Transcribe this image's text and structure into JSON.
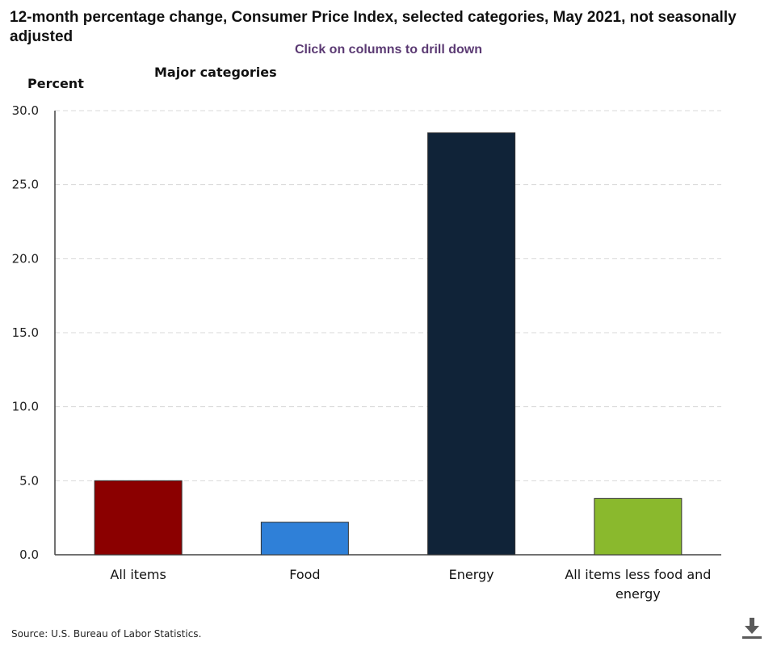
{
  "title": "12-month percentage change, Consumer Price Index, selected categories, May 2021, not seasonally adjusted",
  "subtitle": "Click on columns to drill down",
  "ylabel": "Percent",
  "group_label": "Major categories",
  "source": "Source: U.S. Bureau of Labor Statistics.",
  "download_icon": "download-icon",
  "chart_data": {
    "type": "bar",
    "title": "12-month percentage change, Consumer Price Index, selected categories, May 2021, not seasonally adjusted",
    "xlabel": "",
    "ylabel": "Percent",
    "categories": [
      [
        "All items"
      ],
      [
        "Food"
      ],
      [
        "Energy"
      ],
      [
        "All items less food and",
        "energy"
      ]
    ],
    "values": [
      5.0,
      2.2,
      28.5,
      3.8
    ],
    "colors": [
      "#8b0000",
      "#2f80d8",
      "#102338",
      "#8ab92d"
    ],
    "ylim": [
      0,
      30
    ],
    "yticks": [
      "0.0",
      "5.0",
      "10.0",
      "15.0",
      "20.0",
      "25.0",
      "30.0"
    ],
    "grid": true,
    "legend": "none"
  }
}
